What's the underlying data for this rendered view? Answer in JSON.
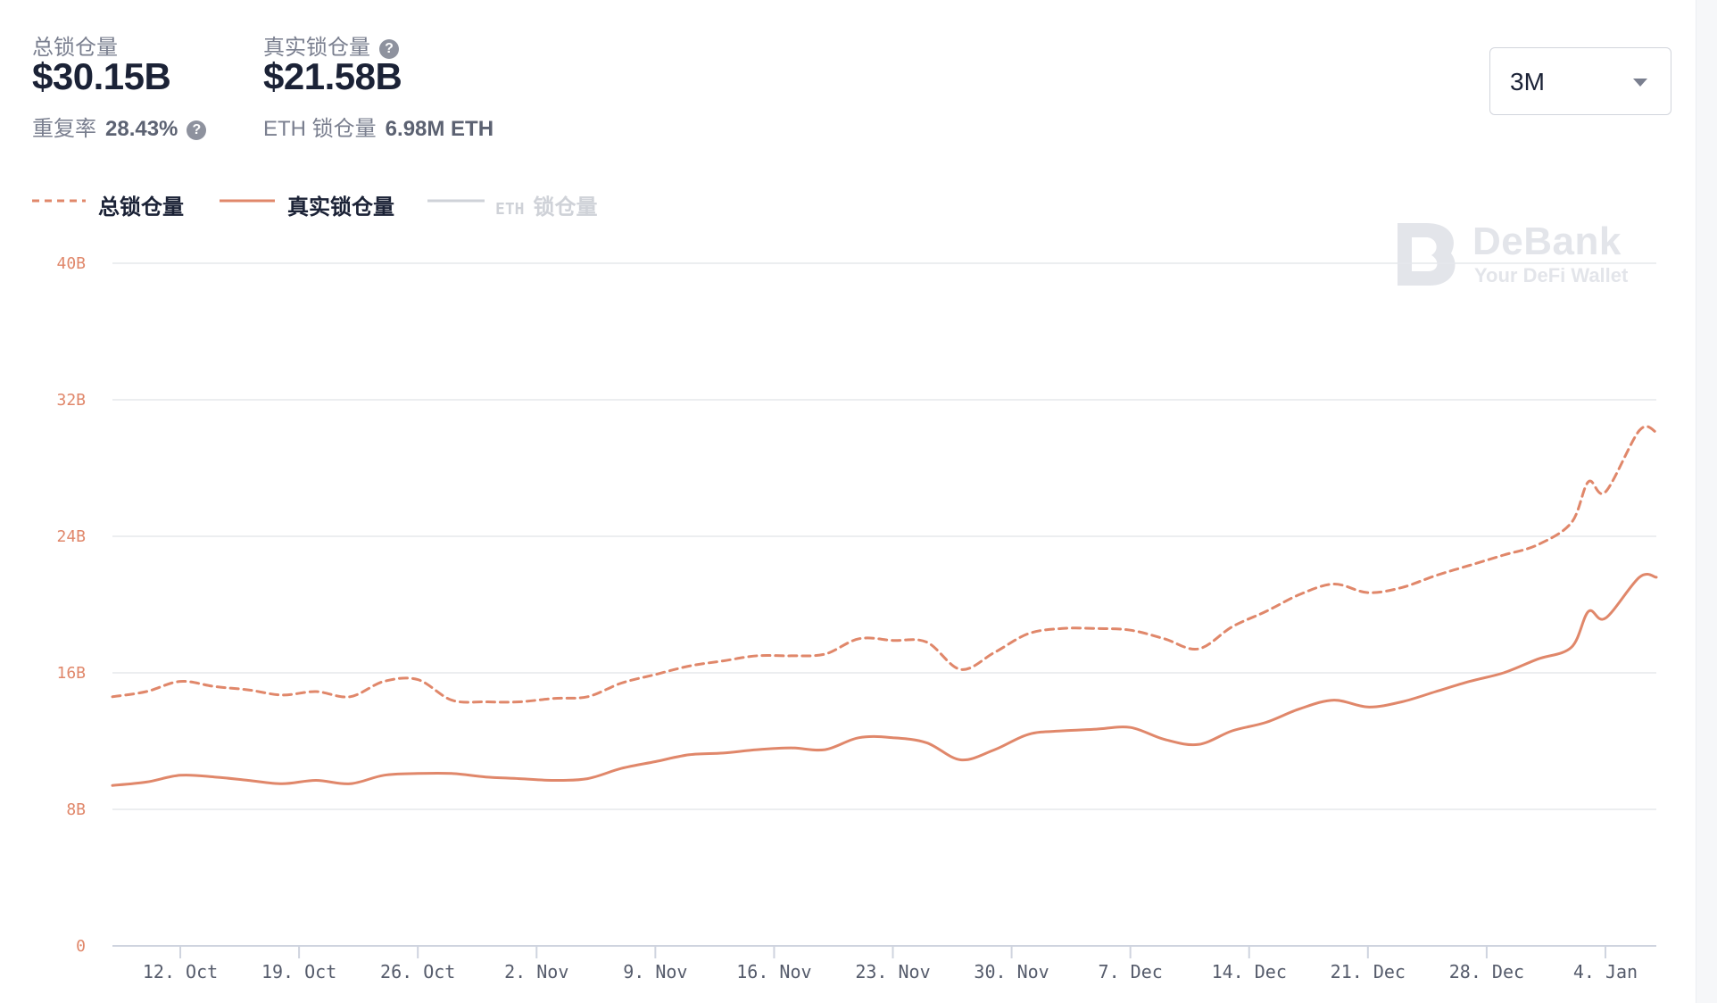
{
  "stats": {
    "total_label": "总锁仓量",
    "total_value": "$30.15B",
    "real_label": "真实锁仓量",
    "real_value": "$21.58B",
    "repeat_label": "重复率",
    "repeat_value": "28.43%",
    "eth_label": "ETH 锁仓量",
    "eth_value": "6.98M ETH",
    "help_glyph": "?"
  },
  "period_select": {
    "value": "3M"
  },
  "legend": {
    "total": "总锁仓量",
    "real": "真实锁仓量",
    "eth_prefix": "ETH",
    "eth_suffix": "锁仓量"
  },
  "watermark": {
    "title": "DeBank",
    "subtitle": "Your DeFi Wallet"
  },
  "colors": {
    "series": "#e0876a",
    "grid": "#e6e8ec",
    "eth_disabled": "#cfd2d8"
  },
  "chart_data": {
    "type": "line",
    "x_start": "2020-10-08",
    "x_end": "2021-01-07",
    "x_ticks": [
      "12. Oct",
      "19. Oct",
      "26. Oct",
      "2. Nov",
      "9. Nov",
      "16. Nov",
      "23. Nov",
      "30. Nov",
      "7. Dec",
      "14. Dec",
      "21. Dec",
      "28. Dec",
      "4. Jan"
    ],
    "y_ticks": [
      "0",
      "8B",
      "16B",
      "24B",
      "32B",
      "40B"
    ],
    "ylim": [
      0,
      40
    ],
    "y_unit": "B",
    "grid": true,
    "legend_position": "top-left",
    "series": [
      {
        "name": "总锁仓量",
        "style": "dashed",
        "points": [
          [
            "2020-10-08",
            14.6
          ],
          [
            "2020-10-10",
            14.9
          ],
          [
            "2020-10-12",
            15.5
          ],
          [
            "2020-10-14",
            15.2
          ],
          [
            "2020-10-16",
            15.0
          ],
          [
            "2020-10-18",
            14.7
          ],
          [
            "2020-10-20",
            14.9
          ],
          [
            "2020-10-22",
            14.6
          ],
          [
            "2020-10-24",
            15.5
          ],
          [
            "2020-10-26",
            15.6
          ],
          [
            "2020-10-28",
            14.4
          ],
          [
            "2020-10-30",
            14.3
          ],
          [
            "2020-11-01",
            14.3
          ],
          [
            "2020-11-03",
            14.5
          ],
          [
            "2020-11-05",
            14.6
          ],
          [
            "2020-11-07",
            15.4
          ],
          [
            "2020-11-09",
            15.9
          ],
          [
            "2020-11-11",
            16.4
          ],
          [
            "2020-11-13",
            16.7
          ],
          [
            "2020-11-15",
            17.0
          ],
          [
            "2020-11-17",
            17.0
          ],
          [
            "2020-11-19",
            17.1
          ],
          [
            "2020-11-21",
            18.0
          ],
          [
            "2020-11-23",
            17.9
          ],
          [
            "2020-11-25",
            17.8
          ],
          [
            "2020-11-27",
            16.2
          ],
          [
            "2020-11-29",
            17.2
          ],
          [
            "2020-12-01",
            18.3
          ],
          [
            "2020-12-03",
            18.6
          ],
          [
            "2020-12-05",
            18.6
          ],
          [
            "2020-12-07",
            18.5
          ],
          [
            "2020-12-09",
            18.0
          ],
          [
            "2020-12-11",
            17.4
          ],
          [
            "2020-12-13",
            18.7
          ],
          [
            "2020-12-15",
            19.6
          ],
          [
            "2020-12-17",
            20.6
          ],
          [
            "2020-12-19",
            21.2
          ],
          [
            "2020-12-21",
            20.7
          ],
          [
            "2020-12-23",
            21.0
          ],
          [
            "2020-12-25",
            21.7
          ],
          [
            "2020-12-27",
            22.3
          ],
          [
            "2020-12-29",
            22.9
          ],
          [
            "2020-12-31",
            23.5
          ],
          [
            "2021-01-02",
            24.8
          ],
          [
            "2021-01-03",
            27.2
          ],
          [
            "2021-01-04",
            26.6
          ],
          [
            "2021-01-06",
            30.2
          ],
          [
            "2021-01-07",
            30.1
          ]
        ]
      },
      {
        "name": "真实锁仓量",
        "style": "solid",
        "points": [
          [
            "2020-10-08",
            9.4
          ],
          [
            "2020-10-10",
            9.6
          ],
          [
            "2020-10-12",
            10.0
          ],
          [
            "2020-10-14",
            9.9
          ],
          [
            "2020-10-16",
            9.7
          ],
          [
            "2020-10-18",
            9.5
          ],
          [
            "2020-10-20",
            9.7
          ],
          [
            "2020-10-22",
            9.5
          ],
          [
            "2020-10-24",
            10.0
          ],
          [
            "2020-10-26",
            10.1
          ],
          [
            "2020-10-28",
            10.1
          ],
          [
            "2020-10-30",
            9.9
          ],
          [
            "2020-11-01",
            9.8
          ],
          [
            "2020-11-03",
            9.7
          ],
          [
            "2020-11-05",
            9.8
          ],
          [
            "2020-11-07",
            10.4
          ],
          [
            "2020-11-09",
            10.8
          ],
          [
            "2020-11-11",
            11.2
          ],
          [
            "2020-11-13",
            11.3
          ],
          [
            "2020-11-15",
            11.5
          ],
          [
            "2020-11-17",
            11.6
          ],
          [
            "2020-11-19",
            11.5
          ],
          [
            "2020-11-21",
            12.2
          ],
          [
            "2020-11-23",
            12.2
          ],
          [
            "2020-11-25",
            11.9
          ],
          [
            "2020-11-27",
            10.9
          ],
          [
            "2020-11-29",
            11.5
          ],
          [
            "2020-12-01",
            12.4
          ],
          [
            "2020-12-03",
            12.6
          ],
          [
            "2020-12-05",
            12.7
          ],
          [
            "2020-12-07",
            12.8
          ],
          [
            "2020-12-09",
            12.1
          ],
          [
            "2020-12-11",
            11.8
          ],
          [
            "2020-12-13",
            12.6
          ],
          [
            "2020-12-15",
            13.1
          ],
          [
            "2020-12-17",
            13.9
          ],
          [
            "2020-12-19",
            14.4
          ],
          [
            "2020-12-21",
            14.0
          ],
          [
            "2020-12-23",
            14.3
          ],
          [
            "2020-12-25",
            14.9
          ],
          [
            "2020-12-27",
            15.5
          ],
          [
            "2020-12-29",
            16.0
          ],
          [
            "2020-12-31",
            16.8
          ],
          [
            "2021-01-02",
            17.5
          ],
          [
            "2021-01-03",
            19.6
          ],
          [
            "2021-01-04",
            19.2
          ],
          [
            "2021-01-06",
            21.6
          ],
          [
            "2021-01-07",
            21.6
          ]
        ]
      },
      {
        "name": "ETH 锁仓量",
        "visible": false,
        "points": []
      }
    ]
  }
}
